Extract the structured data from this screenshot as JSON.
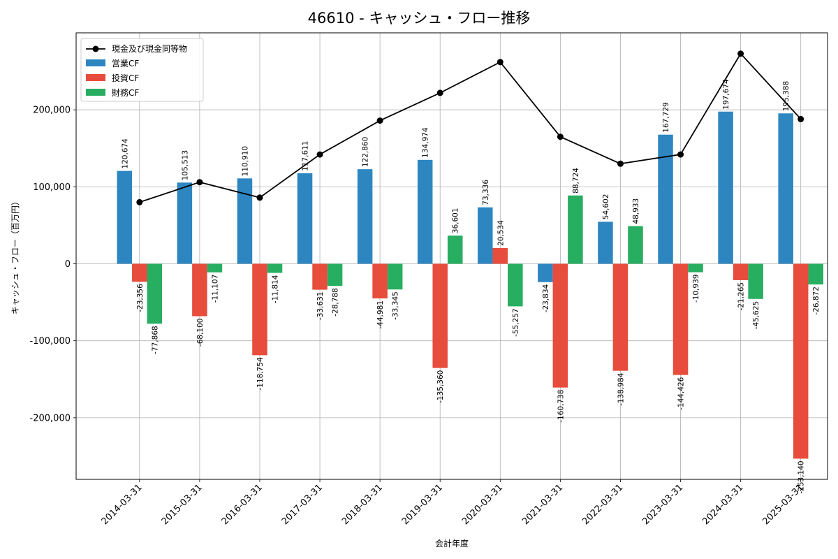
{
  "chart_data": {
    "type": "bar",
    "title": "46610 - キャッシュ・フロー推移",
    "xlabel": "会計年度",
    "ylabel": "キャッシュ・フロー（百万円）",
    "categories": [
      "2014-03-31",
      "2015-03-31",
      "2016-03-31",
      "2017-03-31",
      "2018-03-31",
      "2019-03-31",
      "2020-03-31",
      "2021-03-31",
      "2022-03-31",
      "2023-03-31",
      "2024-03-31",
      "2025-03-31"
    ],
    "series": [
      {
        "name": "営業CF",
        "kind": "bar",
        "color": "#2e86c1",
        "values": [
          120674,
          105513,
          110910,
          117611,
          122860,
          134974,
          73336,
          -23834,
          54602,
          167729,
          197674,
          195388
        ],
        "labels": [
          "120,674",
          "105,513",
          "110,910",
          "117,611",
          "122,860",
          "134,974",
          "73,336",
          "-23,834",
          "54,602",
          "167,729",
          "197,674",
          "195,388"
        ]
      },
      {
        "name": "投資CF",
        "kind": "bar",
        "color": "#e74c3c",
        "values": [
          -23356,
          -68100,
          -118754,
          -33631,
          -44981,
          -135360,
          20534,
          -160738,
          -138984,
          -144426,
          -21265,
          -253140
        ],
        "labels": [
          "-23,356",
          "-68,100",
          "-118,754",
          "-33,631",
          "-44,981",
          "-135,360",
          "20,534",
          "-160,738",
          "-138,984",
          "-144,426",
          "-21,265",
          "-253,140"
        ]
      },
      {
        "name": "財務CF",
        "kind": "bar",
        "color": "#27ae60",
        "values": [
          -77868,
          -11107,
          -11814,
          -28788,
          -33345,
          36601,
          -55257,
          88724,
          48933,
          -10939,
          -45625,
          -26872
        ],
        "labels": [
          "-77,868",
          "-11,107",
          "-11,814",
          "-28,788",
          "-33,345",
          "36,601",
          "-55,257",
          "88,724",
          "48,933",
          "-10,939",
          "-45,625",
          "-26,872"
        ]
      },
      {
        "name": "現金及び現金同等物",
        "kind": "line",
        "color": "#000000",
        "values": [
          80000,
          106000,
          86000,
          142000,
          186000,
          222000,
          262000,
          165000,
          130000,
          142000,
          273000,
          188000
        ]
      }
    ],
    "ylim": [
      -280000,
      300000
    ],
    "yticks": [
      -200000,
      -100000,
      0,
      100000,
      200000
    ],
    "ytick_labels": [
      "-200,000",
      "-100,000",
      "0",
      "100,000",
      "200,000"
    ],
    "grid": true,
    "legend_position": "top-left"
  }
}
